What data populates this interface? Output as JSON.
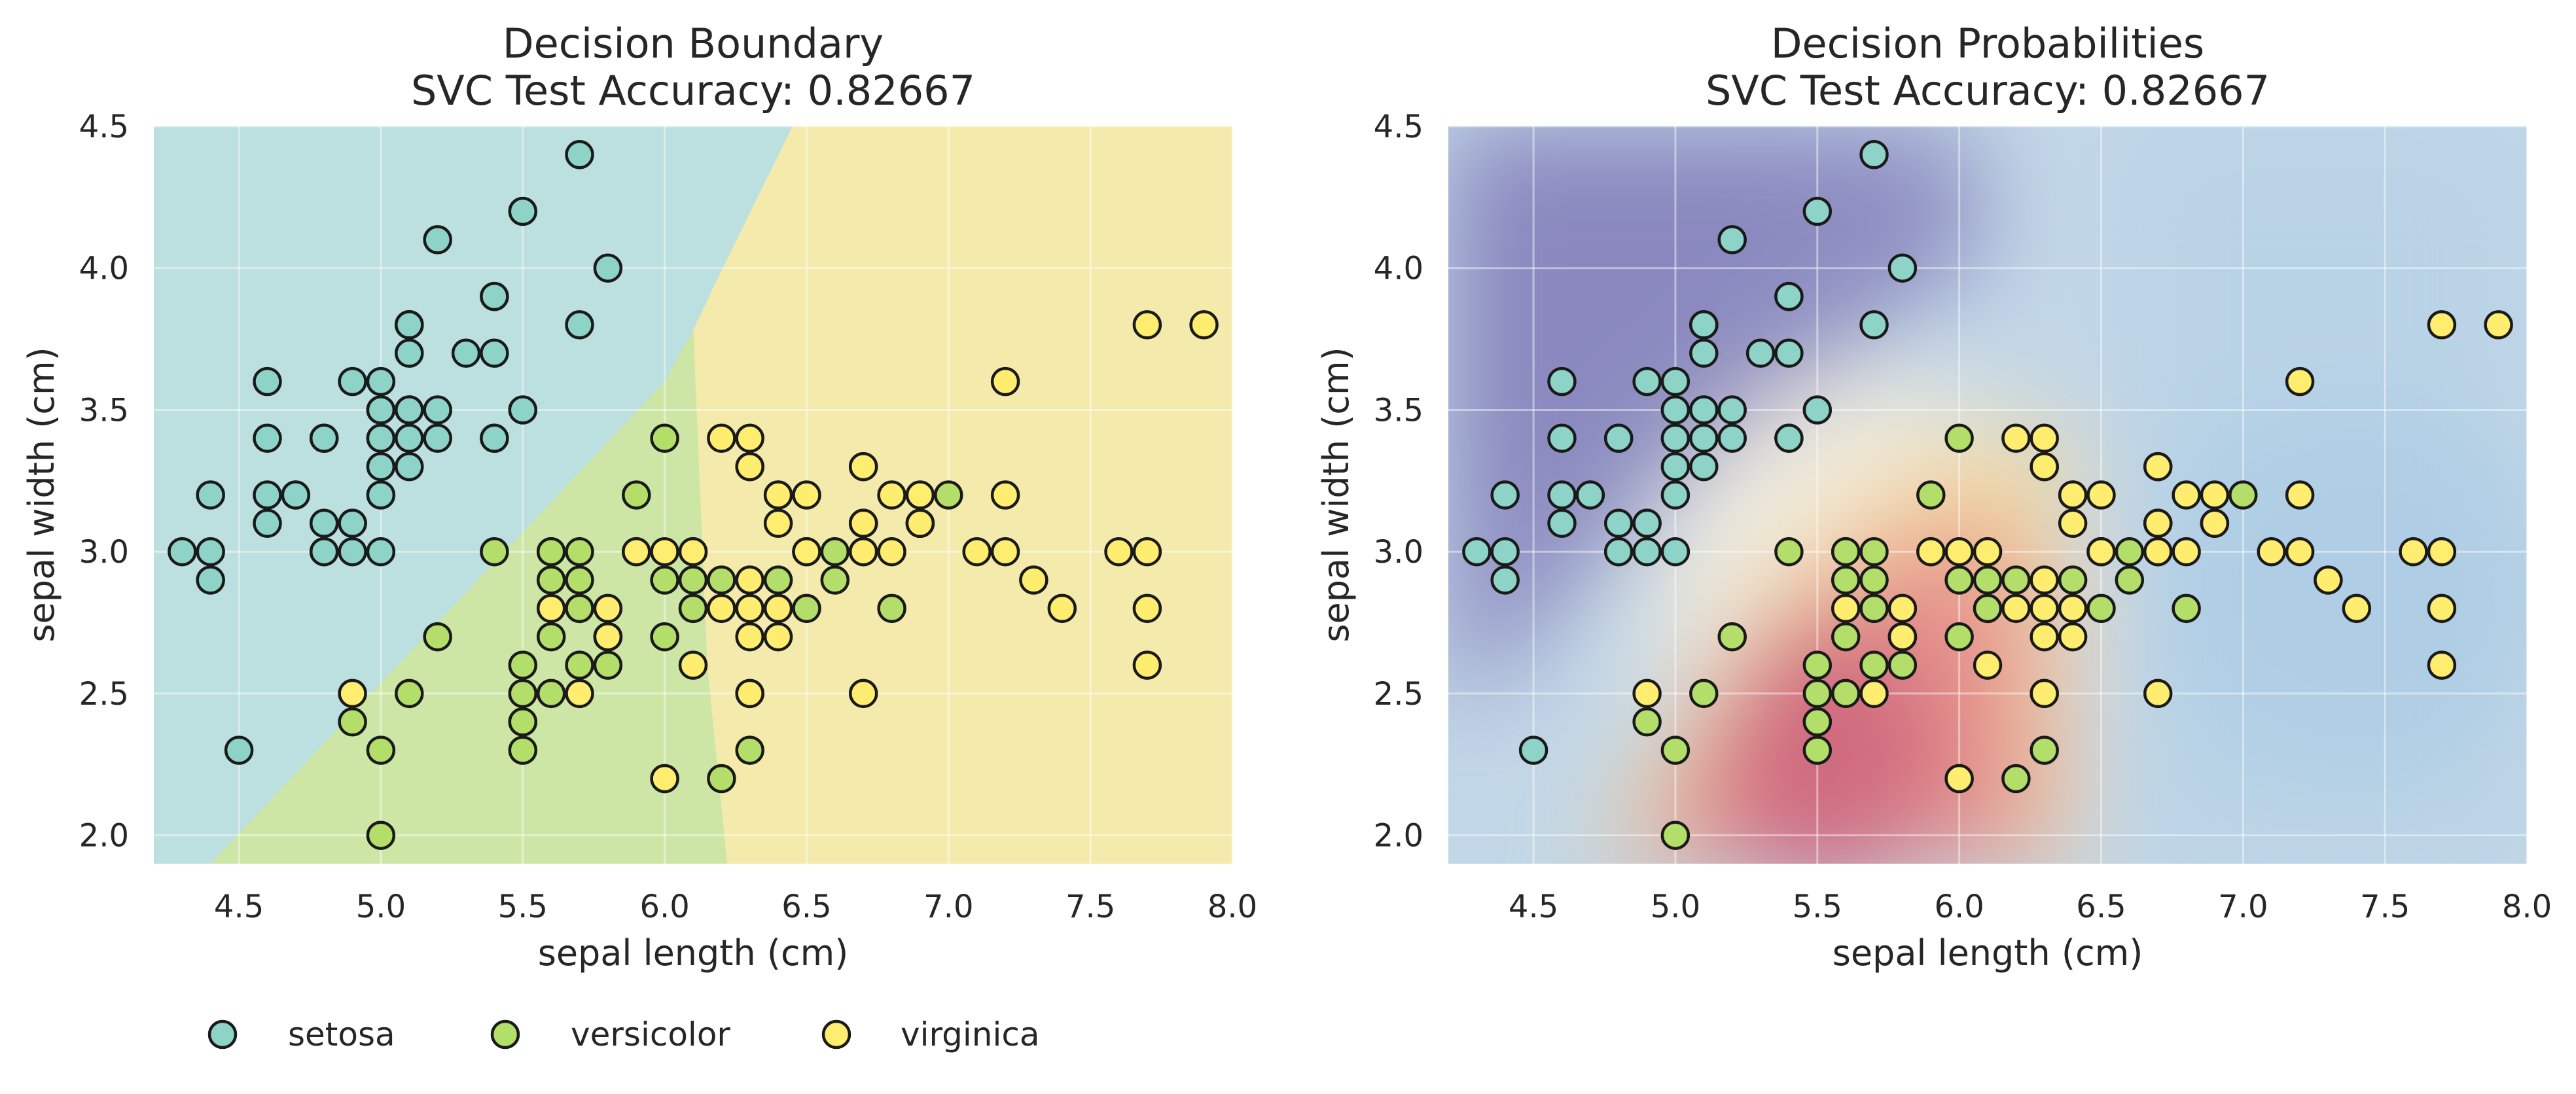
{
  "colors": {
    "setosa": "#8dd3c7",
    "versicolor": "#b3de69",
    "virginica": "#ffed6f",
    "boundary_setosa": "#bcdfdf",
    "boundary_versicolor": "#cde6a6",
    "boundary_virginica": "#f4eaab"
  },
  "legend": {
    "placement": "bottom-left",
    "items": [
      {
        "key": "setosa",
        "label": "setosa"
      },
      {
        "key": "versicolor",
        "label": "versicolor"
      },
      {
        "key": "virginica",
        "label": "virginica"
      }
    ]
  },
  "chart_data": [
    {
      "type": "scatter",
      "title": "Decision Boundary\nSVC Test Accuracy: 0.82667",
      "xlabel": "sepal length (cm)",
      "ylabel": "sepal width (cm)",
      "xlim": [
        4.2,
        8.0
      ],
      "ylim": [
        1.9,
        4.5
      ],
      "xticks": [
        "4.5",
        "5.0",
        "5.5",
        "6.0",
        "6.5",
        "7.0",
        "7.5",
        "8.0"
      ],
      "yticks": [
        "2.0",
        "2.5",
        "3.0",
        "3.5",
        "4.0",
        "4.5"
      ],
      "grid": true,
      "background": "decision regions (setosa / versicolor / virginica)"
    },
    {
      "type": "scatter",
      "title": "Decision Probabilities\nSVC Test Accuracy: 0.82667",
      "xlabel": "sepal length (cm)",
      "ylabel": "sepal width (cm)",
      "xlim": [
        4.2,
        8.0
      ],
      "ylim": [
        1.9,
        4.5
      ],
      "xticks": [
        "4.5",
        "5.0",
        "5.5",
        "6.0",
        "6.5",
        "7.0",
        "7.5",
        "8.0"
      ],
      "yticks": [
        "2.0",
        "2.5",
        "3.0",
        "3.5",
        "4.0",
        "4.5"
      ],
      "grid": true,
      "background": "probability heatmap (blue-white-red)"
    }
  ],
  "series": [
    {
      "name": "setosa",
      "points": [
        [
          5.1,
          3.5
        ],
        [
          4.9,
          3.0
        ],
        [
          4.7,
          3.2
        ],
        [
          4.6,
          3.1
        ],
        [
          5.0,
          3.6
        ],
        [
          5.4,
          3.9
        ],
        [
          4.6,
          3.4
        ],
        [
          5.0,
          3.4
        ],
        [
          4.4,
          2.9
        ],
        [
          4.9,
          3.1
        ],
        [
          5.4,
          3.7
        ],
        [
          4.8,
          3.4
        ],
        [
          4.8,
          3.0
        ],
        [
          4.3,
          3.0
        ],
        [
          5.8,
          4.0
        ],
        [
          5.7,
          4.4
        ],
        [
          5.4,
          3.9
        ],
        [
          5.1,
          3.5
        ],
        [
          5.7,
          3.8
        ],
        [
          5.1,
          3.8
        ],
        [
          5.4,
          3.4
        ],
        [
          5.1,
          3.7
        ],
        [
          4.6,
          3.6
        ],
        [
          5.1,
          3.3
        ],
        [
          4.8,
          3.4
        ],
        [
          5.0,
          3.0
        ],
        [
          5.0,
          3.4
        ],
        [
          5.2,
          3.5
        ],
        [
          5.2,
          3.4
        ],
        [
          4.7,
          3.2
        ],
        [
          4.8,
          3.1
        ],
        [
          5.4,
          3.4
        ],
        [
          5.2,
          4.1
        ],
        [
          5.5,
          4.2
        ],
        [
          4.9,
          3.1
        ],
        [
          5.0,
          3.2
        ],
        [
          5.5,
          3.5
        ],
        [
          4.9,
          3.6
        ],
        [
          4.4,
          3.0
        ],
        [
          5.1,
          3.4
        ],
        [
          5.0,
          3.5
        ],
        [
          4.5,
          2.3
        ],
        [
          4.4,
          3.2
        ],
        [
          5.0,
          3.5
        ],
        [
          5.1,
          3.8
        ],
        [
          4.8,
          3.0
        ],
        [
          5.1,
          3.8
        ],
        [
          4.6,
          3.2
        ],
        [
          5.3,
          3.7
        ],
        [
          5.0,
          3.3
        ]
      ]
    },
    {
      "name": "versicolor",
      "points": [
        [
          7.0,
          3.2
        ],
        [
          6.4,
          3.2
        ],
        [
          6.9,
          3.1
        ],
        [
          5.5,
          2.3
        ],
        [
          6.5,
          2.8
        ],
        [
          5.7,
          2.8
        ],
        [
          6.3,
          3.3
        ],
        [
          4.9,
          2.4
        ],
        [
          6.6,
          2.9
        ],
        [
          5.2,
          2.7
        ],
        [
          5.0,
          2.0
        ],
        [
          5.9,
          3.0
        ],
        [
          6.0,
          2.2
        ],
        [
          6.1,
          2.9
        ],
        [
          5.6,
          2.9
        ],
        [
          6.7,
          3.1
        ],
        [
          5.6,
          3.0
        ],
        [
          5.8,
          2.7
        ],
        [
          6.2,
          2.2
        ],
        [
          5.6,
          2.5
        ],
        [
          5.9,
          3.2
        ],
        [
          6.1,
          2.8
        ],
        [
          6.3,
          2.5
        ],
        [
          6.1,
          2.8
        ],
        [
          6.4,
          2.9
        ],
        [
          6.6,
          3.0
        ],
        [
          6.8,
          2.8
        ],
        [
          6.7,
          3.0
        ],
        [
          6.0,
          2.9
        ],
        [
          5.7,
          2.6
        ],
        [
          5.5,
          2.4
        ],
        [
          5.5,
          2.4
        ],
        [
          5.8,
          2.7
        ],
        [
          6.0,
          2.7
        ],
        [
          5.4,
          3.0
        ],
        [
          6.0,
          3.4
        ],
        [
          6.7,
          3.1
        ],
        [
          6.3,
          2.3
        ],
        [
          5.6,
          3.0
        ],
        [
          5.5,
          2.5
        ],
        [
          5.5,
          2.6
        ],
        [
          6.1,
          3.0
        ],
        [
          5.8,
          2.6
        ],
        [
          5.0,
          2.3
        ],
        [
          5.6,
          2.7
        ],
        [
          5.7,
          3.0
        ],
        [
          5.7,
          2.9
        ],
        [
          6.2,
          2.9
        ],
        [
          5.1,
          2.5
        ],
        [
          5.7,
          2.8
        ]
      ]
    },
    {
      "name": "virginica",
      "points": [
        [
          6.3,
          3.3
        ],
        [
          5.8,
          2.7
        ],
        [
          7.1,
          3.0
        ],
        [
          6.3,
          2.9
        ],
        [
          6.5,
          3.0
        ],
        [
          7.6,
          3.0
        ],
        [
          4.9,
          2.5
        ],
        [
          7.3,
          2.9
        ],
        [
          6.7,
          2.5
        ],
        [
          7.2,
          3.6
        ],
        [
          6.5,
          3.2
        ],
        [
          6.4,
          2.7
        ],
        [
          6.8,
          3.0
        ],
        [
          5.7,
          2.5
        ],
        [
          5.8,
          2.8
        ],
        [
          6.4,
          3.2
        ],
        [
          6.5,
          3.0
        ],
        [
          7.7,
          3.8
        ],
        [
          7.7,
          2.6
        ],
        [
          6.0,
          2.2
        ],
        [
          6.9,
          3.2
        ],
        [
          5.6,
          2.8
        ],
        [
          7.7,
          2.8
        ],
        [
          6.3,
          2.7
        ],
        [
          6.7,
          3.3
        ],
        [
          7.2,
          3.2
        ],
        [
          6.2,
          2.8
        ],
        [
          6.1,
          3.0
        ],
        [
          6.4,
          2.8
        ],
        [
          7.2,
          3.0
        ],
        [
          7.4,
          2.8
        ],
        [
          7.9,
          3.8
        ],
        [
          6.4,
          2.8
        ],
        [
          6.3,
          2.8
        ],
        [
          6.1,
          2.6
        ],
        [
          7.7,
          3.0
        ],
        [
          6.3,
          3.4
        ],
        [
          6.4,
          3.1
        ],
        [
          6.0,
          3.0
        ],
        [
          6.9,
          3.1
        ],
        [
          6.7,
          3.1
        ],
        [
          6.9,
          3.1
        ],
        [
          5.8,
          2.7
        ],
        [
          6.8,
          3.2
        ],
        [
          6.7,
          3.3
        ],
        [
          6.7,
          3.0
        ],
        [
          6.3,
          2.5
        ],
        [
          6.5,
          3.0
        ],
        [
          6.2,
          3.4
        ],
        [
          5.9,
          3.0
        ]
      ]
    }
  ]
}
